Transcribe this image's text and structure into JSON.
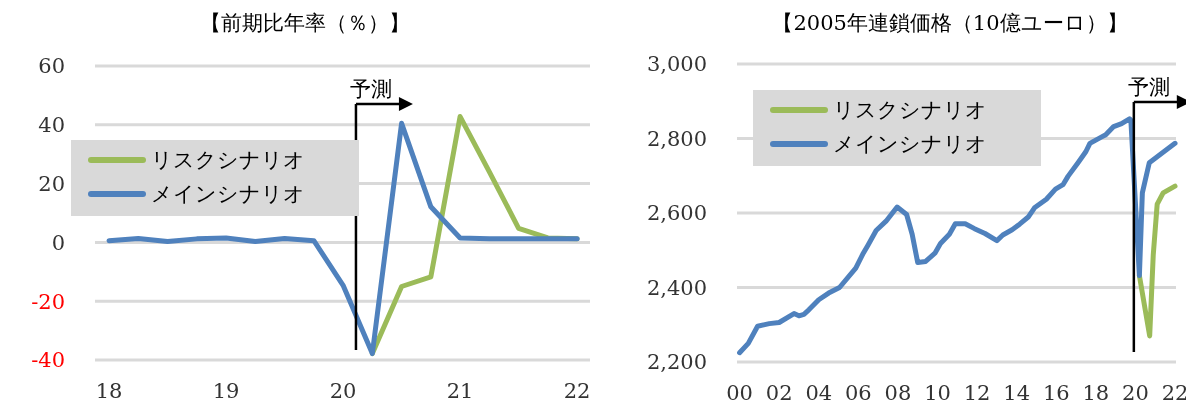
{
  "chart_data": [
    {
      "type": "line",
      "title": "【前期比年率（％）】",
      "xlim": [
        17.88,
        22.11
      ],
      "xticks": [
        18,
        19,
        20,
        21,
        22
      ],
      "ylim": [
        -40,
        60
      ],
      "yticks": [
        -40,
        -20,
        0,
        20,
        40,
        60
      ],
      "grid": "y",
      "legend": "left",
      "line_style": "solid",
      "marker": "none",
      "ref_lines": [
        {
          "axis": "x",
          "value": 20.11,
          "label": "予測"
        }
      ],
      "series": [
        {
          "name": "リスクシナリオ",
          "color": "#9bbb59",
          "x": [
            20.25,
            20.5,
            20.75,
            21,
            21.25,
            21.5,
            21.75,
            22
          ],
          "values": [
            -37.8,
            -15,
            -11.7,
            42.8,
            24,
            4.8,
            1.5,
            1.2
          ]
        },
        {
          "name": "メインシナリオ",
          "color": "#4f81bd",
          "x": [
            18,
            18.25,
            18.5,
            18.75,
            19,
            19.25,
            19.5,
            19.75,
            20,
            20.25,
            20.5,
            20.75,
            21,
            21.25,
            21.5,
            21.75,
            22
          ],
          "values": [
            0.6,
            1.3,
            0.3,
            1.2,
            1.5,
            0.3,
            1.3,
            0.6,
            -14.6,
            -37.8,
            40.5,
            12.1,
            1.5,
            1.2,
            1.2,
            1.2,
            1.2
          ]
        }
      ]
    },
    {
      "type": "line",
      "title": "【2005年連鎖価格（10億ユーロ）】",
      "xlim": [
        -0.13,
        22.05
      ],
      "xticks": [
        {
          "value": 0,
          "label": "00"
        },
        {
          "value": 2,
          "label": "02"
        },
        {
          "value": 4,
          "label": "04"
        },
        {
          "value": 6,
          "label": "06"
        },
        {
          "value": 8,
          "label": "08"
        },
        {
          "value": 10,
          "label": "10"
        },
        {
          "value": 12,
          "label": "12"
        },
        {
          "value": 14,
          "label": "14"
        },
        {
          "value": 16,
          "label": "16"
        },
        {
          "value": 18,
          "label": "18"
        },
        {
          "value": 20,
          "label": "20"
        },
        {
          "value": 22,
          "label": "22"
        }
      ],
      "ylim": [
        2200,
        3000
      ],
      "yticks": [
        {
          "value": 2200,
          "label": "2,200"
        },
        {
          "value": 2400,
          "label": "2,400"
        },
        {
          "value": 2600,
          "label": "2,600"
        },
        {
          "value": 2800,
          "label": "2,800"
        },
        {
          "value": 3000,
          "label": "3,000"
        }
      ],
      "grid": "y",
      "legend": "top left",
      "line_style": "solid",
      "marker": "none",
      "ref_lines": [
        {
          "axis": "x",
          "value": 19.92,
          "label": "予測"
        }
      ],
      "series": [
        {
          "name": "リスクシナリオ",
          "color": "#9bbb59",
          "x": [
            20.2,
            20.72,
            20.9,
            21.1,
            21.4,
            22
          ],
          "values": [
            2432,
            2270,
            2487,
            2624,
            2654,
            2672
          ]
        },
        {
          "name": "メインシナリオ",
          "color": "#4f81bd",
          "x": [
            0,
            0.44,
            0.91,
            1.5,
            2,
            2.75,
            3,
            3.25,
            3.5,
            4,
            4.5,
            5.05,
            5.87,
            6.25,
            6.48,
            6.9,
            7.4,
            7.96,
            8.44,
            8.72,
            9,
            9.4,
            9.87,
            10.15,
            10.6,
            10.9,
            11.4,
            11.87,
            12.4,
            13,
            13.3,
            13.77,
            14.15,
            14.6,
            14.9,
            15.5,
            15.96,
            16.34,
            16.6,
            17.1,
            17.5,
            17.7,
            18.25,
            18.5,
            18.9,
            19.3,
            19.7,
            19.77,
            20.2,
            20.35,
            20.7,
            22
          ],
          "values": [
            2225,
            2250,
            2296,
            2303,
            2306,
            2330,
            2324,
            2328,
            2340,
            2367,
            2385,
            2400,
            2452,
            2492,
            2513,
            2553,
            2578,
            2616,
            2596,
            2543,
            2467,
            2470,
            2492,
            2518,
            2543,
            2571,
            2571,
            2558,
            2545,
            2526,
            2541,
            2555,
            2570,
            2590,
            2614,
            2637,
            2664,
            2676,
            2699,
            2735,
            2765,
            2787,
            2803,
            2810,
            2832,
            2840,
            2853,
            2849,
            2432,
            2654,
            2735,
            2787
          ]
        }
      ]
    }
  ]
}
